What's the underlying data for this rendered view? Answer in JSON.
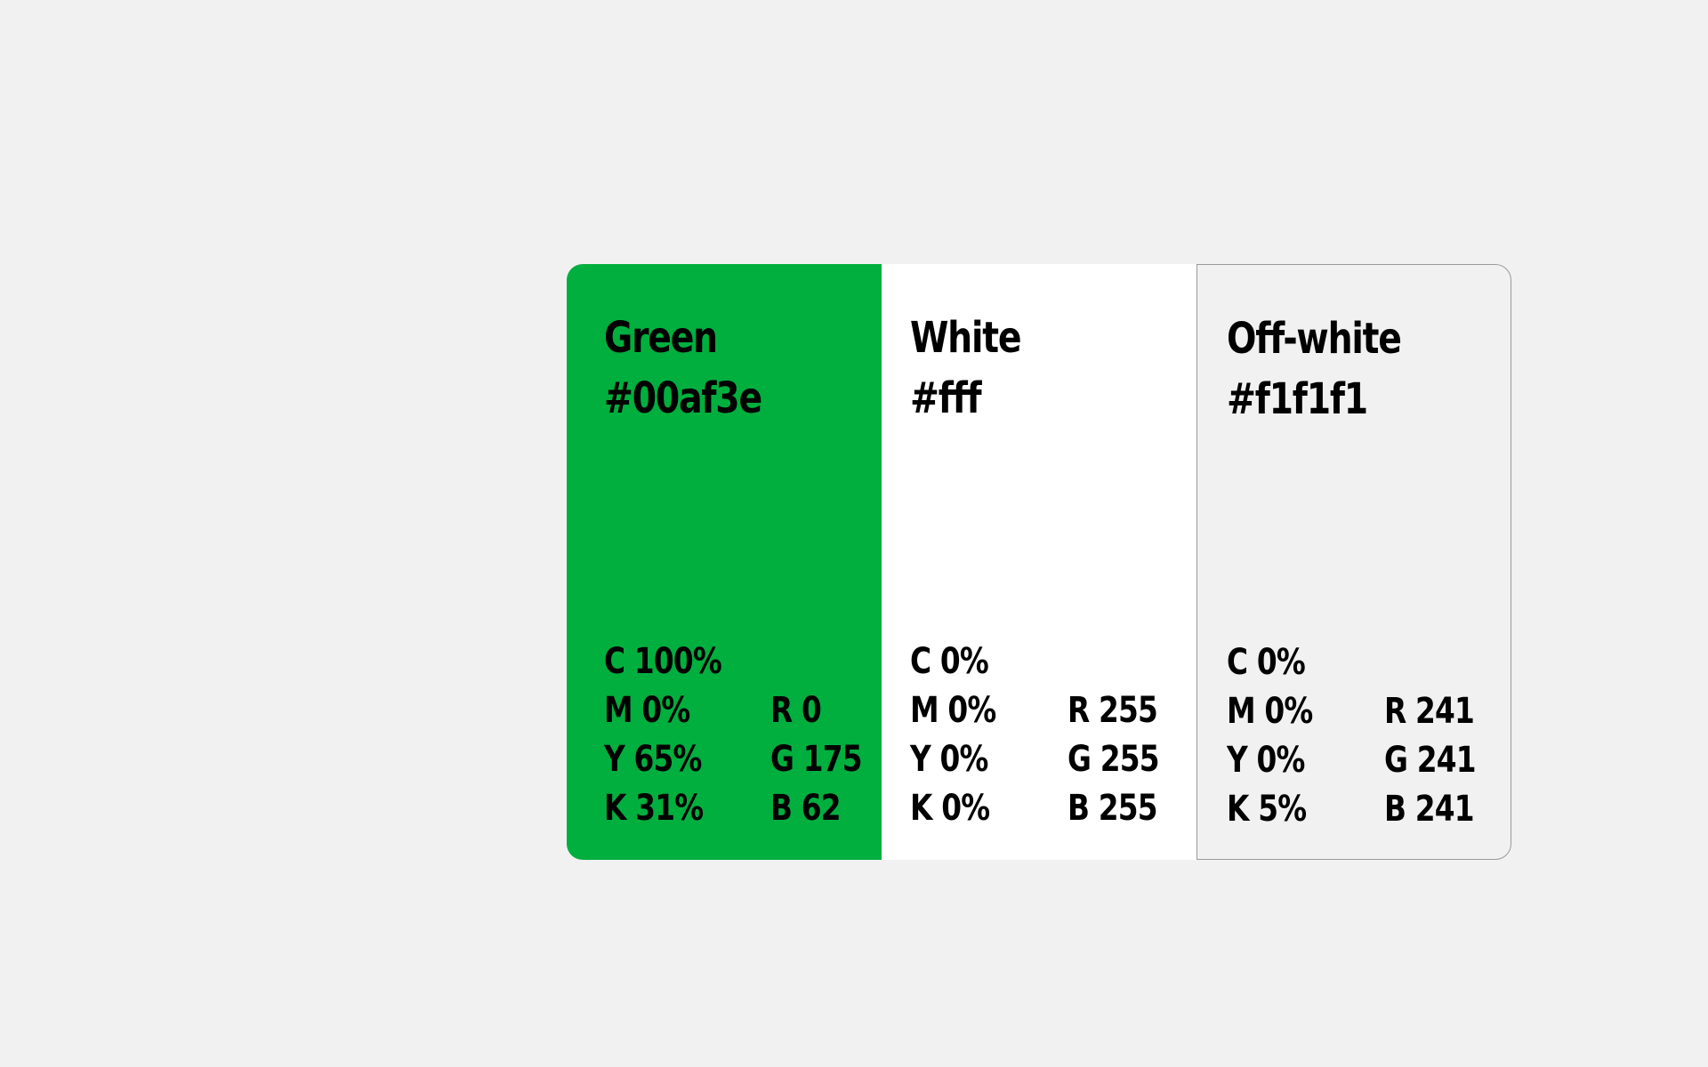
{
  "swatches": [
    {
      "name": "Green",
      "hex": "#00af3e",
      "background": "#00af3e",
      "cmyk": [
        "C 100%",
        "M 0%",
        "Y 65%",
        "K 31%"
      ],
      "rgb": [
        "R 0",
        "G 175",
        "B 62"
      ]
    },
    {
      "name": "White",
      "hex": "#fff",
      "background": "#ffffff",
      "cmyk": [
        "C 0%",
        "M 0%",
        "Y 0%",
        "K 0%"
      ],
      "rgb": [
        "R 255",
        "G 255",
        "B 255"
      ]
    },
    {
      "name": "Off-white",
      "hex": "#f1f1f1",
      "background": "#f1f1f1",
      "cmyk": [
        "C 0%",
        "M 0%",
        "Y 0%",
        "K 5%"
      ],
      "rgb": [
        "R 241",
        "G 241",
        "B 241"
      ]
    }
  ]
}
